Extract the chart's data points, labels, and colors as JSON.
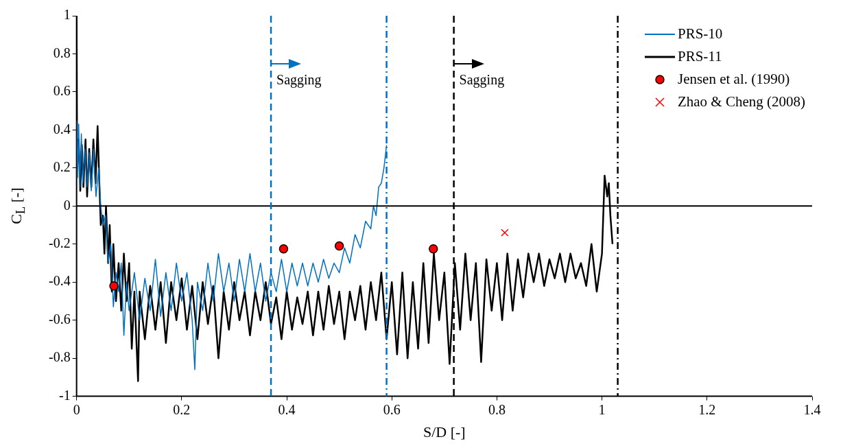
{
  "chart_data": {
    "type": "line",
    "xlabel": "S/D [-]",
    "ylabel": "C$_{L}$ [-]",
    "xlim": [
      0,
      1.4
    ],
    "xticks": [
      0,
      0.2,
      0.4,
      0.6,
      0.8,
      1,
      1.2,
      1.4
    ],
    "ylim": [
      -1,
      1
    ],
    "yticks": [
      -1,
      -0.8,
      -0.6,
      -0.4,
      -0.2,
      0,
      0.2,
      0.4,
      0.6,
      0.8,
      1
    ],
    "grid": false,
    "legend": "top right",
    "marker": "none",
    "series": [
      {
        "name": "PRS-10",
        "color": "#0070c0",
        "type": "line",
        "line_style": "solid",
        "x": [
          0,
          0.002,
          0.004,
          0.006,
          0.009,
          0.012,
          0.016,
          0.02,
          0.024,
          0.028,
          0.032,
          0.037,
          0.042,
          0.046,
          0.05,
          0.055,
          0.06,
          0.065,
          0.07,
          0.075,
          0.08,
          0.085,
          0.09,
          0.095,
          0.1,
          0.11,
          0.12,
          0.13,
          0.14,
          0.15,
          0.16,
          0.17,
          0.18,
          0.19,
          0.2,
          0.21,
          0.22,
          0.225,
          0.23,
          0.24,
          0.25,
          0.26,
          0.27,
          0.28,
          0.29,
          0.3,
          0.31,
          0.32,
          0.33,
          0.34,
          0.35,
          0.36,
          0.37,
          0.38,
          0.39,
          0.4,
          0.41,
          0.42,
          0.43,
          0.44,
          0.45,
          0.46,
          0.47,
          0.48,
          0.49,
          0.5,
          0.51,
          0.52,
          0.53,
          0.54,
          0.55,
          0.56,
          0.565,
          0.57,
          0.575,
          0.58,
          0.585,
          0.59
        ],
        "values": [
          0.45,
          0.15,
          0.43,
          0.1,
          0.38,
          0.12,
          0.3,
          0.1,
          0.28,
          0.08,
          0.3,
          0.05,
          0.2,
          0,
          -0.1,
          -0.05,
          -0.3,
          -0.2,
          -0.53,
          -0.35,
          -0.45,
          -0.3,
          -0.68,
          -0.4,
          -0.55,
          -0.35,
          -0.6,
          -0.38,
          -0.55,
          -0.28,
          -0.58,
          -0.35,
          -0.55,
          -0.3,
          -0.5,
          -0.35,
          -0.6,
          -0.86,
          -0.4,
          -0.55,
          -0.3,
          -0.5,
          -0.25,
          -0.45,
          -0.3,
          -0.5,
          -0.28,
          -0.45,
          -0.25,
          -0.45,
          -0.3,
          -0.5,
          -0.35,
          -0.45,
          -0.28,
          -0.45,
          -0.3,
          -0.42,
          -0.3,
          -0.42,
          -0.3,
          -0.4,
          -0.28,
          -0.38,
          -0.3,
          -0.35,
          -0.22,
          -0.3,
          -0.15,
          -0.22,
          -0.08,
          -0.12,
          0,
          -0.05,
          0.1,
          0.12,
          0.2,
          0.32
        ]
      },
      {
        "name": "PRS-11",
        "color": "#000000",
        "type": "line",
        "line_style": "solid",
        "x": [
          0,
          0.001,
          0.004,
          0.007,
          0.01,
          0.013,
          0.017,
          0.02,
          0.024,
          0.028,
          0.032,
          0.036,
          0.04,
          0.043,
          0.046,
          0.05,
          0.053,
          0.056,
          0.06,
          0.063,
          0.067,
          0.07,
          0.075,
          0.08,
          0.085,
          0.09,
          0.095,
          0.1,
          0.105,
          0.11,
          0.117,
          0.12,
          0.13,
          0.14,
          0.15,
          0.16,
          0.17,
          0.18,
          0.19,
          0.2,
          0.21,
          0.22,
          0.23,
          0.24,
          0.25,
          0.26,
          0.27,
          0.28,
          0.29,
          0.3,
          0.31,
          0.32,
          0.33,
          0.34,
          0.35,
          0.36,
          0.37,
          0.38,
          0.39,
          0.4,
          0.41,
          0.42,
          0.43,
          0.44,
          0.45,
          0.46,
          0.47,
          0.48,
          0.49,
          0.5,
          0.51,
          0.52,
          0.53,
          0.54,
          0.55,
          0.56,
          0.57,
          0.58,
          0.59,
          0.6,
          0.61,
          0.62,
          0.63,
          0.64,
          0.65,
          0.66,
          0.67,
          0.68,
          0.69,
          0.7,
          0.71,
          0.72,
          0.73,
          0.74,
          0.75,
          0.76,
          0.77,
          0.78,
          0.79,
          0.8,
          0.81,
          0.82,
          0.83,
          0.84,
          0.85,
          0.86,
          0.87,
          0.88,
          0.89,
          0.9,
          0.91,
          0.92,
          0.93,
          0.94,
          0.95,
          0.96,
          0.97,
          0.98,
          0.99,
          1,
          1.005,
          1.01,
          1.013,
          1.016,
          1.02
        ],
        "values": [
          1,
          0.2,
          0.35,
          0.08,
          0.32,
          0.1,
          0.35,
          0.05,
          0.3,
          0.1,
          0.35,
          0.12,
          0.42,
          0.15,
          -0.1,
          -0.05,
          -0.25,
          0,
          -0.3,
          -0.1,
          -0.45,
          -0.2,
          -0.5,
          -0.3,
          -0.55,
          -0.25,
          -0.5,
          -0.3,
          -0.75,
          -0.45,
          -0.92,
          -0.45,
          -0.7,
          -0.42,
          -0.65,
          -0.4,
          -0.72,
          -0.4,
          -0.6,
          -0.38,
          -0.65,
          -0.42,
          -0.7,
          -0.4,
          -0.62,
          -0.42,
          -0.8,
          -0.45,
          -0.65,
          -0.4,
          -0.6,
          -0.45,
          -0.68,
          -0.45,
          -0.6,
          -0.4,
          -0.62,
          -0.48,
          -0.7,
          -0.45,
          -0.65,
          -0.48,
          -0.62,
          -0.45,
          -0.68,
          -0.45,
          -0.65,
          -0.42,
          -0.62,
          -0.45,
          -0.7,
          -0.45,
          -0.6,
          -0.42,
          -0.65,
          -0.4,
          -0.6,
          -0.35,
          -0.7,
          -0.4,
          -0.78,
          -0.35,
          -0.8,
          -0.4,
          -0.75,
          -0.3,
          -0.72,
          -0.25,
          -0.6,
          -0.35,
          -0.83,
          -0.3,
          -0.65,
          -0.25,
          -0.6,
          -0.3,
          -0.82,
          -0.28,
          -0.55,
          -0.3,
          -0.6,
          -0.25,
          -0.55,
          -0.28,
          -0.48,
          -0.25,
          -0.4,
          -0.25,
          -0.42,
          -0.28,
          -0.38,
          -0.25,
          -0.4,
          -0.25,
          -0.38,
          -0.3,
          -0.42,
          -0.2,
          -0.45,
          -0.25,
          0.16,
          0.05,
          0.12,
          -0.05,
          -0.2
        ]
      },
      {
        "name": "Jensen et al. (1990)",
        "color": "#ff0000",
        "type": "scatter",
        "marker": "circle",
        "x": [
          0.071,
          0.394,
          0.5,
          0.679
        ],
        "values": [
          -0.42,
          -0.225,
          -0.21,
          -0.225
        ]
      },
      {
        "name": "Zhao & Cheng (2008)",
        "color": "#ff0000",
        "type": "scatter",
        "marker": "cross",
        "x": [
          0.815
        ],
        "values": [
          -0.14
        ]
      }
    ],
    "ref_lines": [
      {
        "axis": "y",
        "value": 0,
        "color": "#000000",
        "line_style": "solid"
      },
      {
        "axis": "x",
        "value": 0.37,
        "color": "#0070c0",
        "line_style": "dashed"
      },
      {
        "axis": "x",
        "value": 0.59,
        "color": "#0070c0",
        "line_style": "dashdot"
      },
      {
        "axis": "x",
        "value": 0.718,
        "color": "#000000",
        "line_style": "dashed"
      },
      {
        "axis": "x",
        "value": 1.03,
        "color": "#000000",
        "line_style": "dashdot"
      }
    ],
    "annotations": [
      {
        "text": "Sagging",
        "x": 0.37,
        "y": 0.66
      },
      {
        "text": "Sagging",
        "x": 0.718,
        "y": 0.66
      }
    ]
  }
}
